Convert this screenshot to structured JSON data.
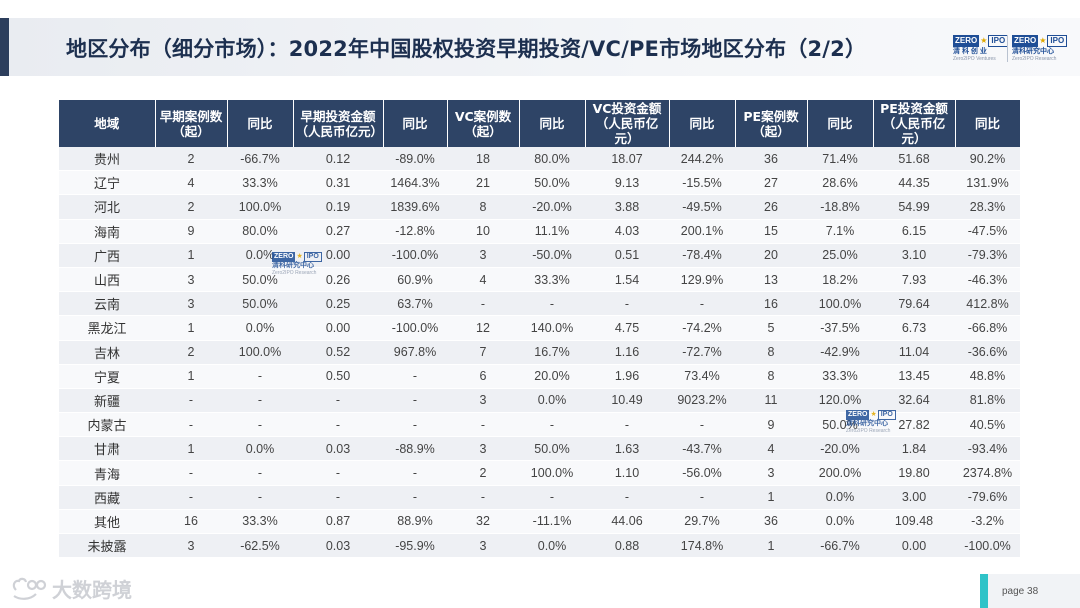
{
  "header": {
    "title": "地区分布（细分市场）：2022年中国股权投资早期投资/VC/PE市场地区分布（2/2）",
    "logo_left": {
      "badge_a": "ZERO",
      "badge_b": "IPO",
      "cn": "清 科 创 业",
      "en": "Zero2IPO Ventures"
    },
    "logo_right": {
      "badge_a": "ZERO",
      "badge_b": "IPO",
      "cn": "清科研究中心",
      "en": "Zero2IPO Research"
    }
  },
  "table": {
    "headers": [
      "地域",
      "早期案例数\n（起）",
      "同比",
      "早期投资金额\n（人民币亿元）",
      "同比",
      "VC案例数\n（起）",
      "同比",
      "VC投资金额\n（人民币亿元）",
      "同比",
      "PE案例数\n（起）",
      "同比",
      "PE投资金额\n（人民币亿元）",
      "同比"
    ],
    "rows": [
      [
        "贵州",
        "2",
        "-66.7%",
        "0.12",
        "-89.0%",
        "18",
        "80.0%",
        "18.07",
        "244.2%",
        "36",
        "71.4%",
        "51.68",
        "90.2%"
      ],
      [
        "辽宁",
        "4",
        "33.3%",
        "0.31",
        "1464.3%",
        "21",
        "50.0%",
        "9.13",
        "-15.5%",
        "27",
        "28.6%",
        "44.35",
        "131.9%"
      ],
      [
        "河北",
        "2",
        "100.0%",
        "0.19",
        "1839.6%",
        "8",
        "-20.0%",
        "3.88",
        "-49.5%",
        "26",
        "-18.8%",
        "54.99",
        "28.3%"
      ],
      [
        "海南",
        "9",
        "80.0%",
        "0.27",
        "-12.8%",
        "10",
        "11.1%",
        "4.03",
        "200.1%",
        "15",
        "7.1%",
        "6.15",
        "-47.5%"
      ],
      [
        "广西",
        "1",
        "0.0%",
        "0.00",
        "-100.0%",
        "3",
        "-50.0%",
        "0.51",
        "-78.4%",
        "20",
        "25.0%",
        "3.10",
        "-79.3%"
      ],
      [
        "山西",
        "3",
        "50.0%",
        "0.26",
        "60.9%",
        "4",
        "33.3%",
        "1.54",
        "129.9%",
        "13",
        "18.2%",
        "7.93",
        "-46.3%"
      ],
      [
        "云南",
        "3",
        "50.0%",
        "0.25",
        "63.7%",
        "-",
        "-",
        "-",
        "-",
        "16",
        "100.0%",
        "79.64",
        "412.8%"
      ],
      [
        "黑龙江",
        "1",
        "0.0%",
        "0.00",
        "-100.0%",
        "12",
        "140.0%",
        "4.75",
        "-74.2%",
        "5",
        "-37.5%",
        "6.73",
        "-66.8%"
      ],
      [
        "吉林",
        "2",
        "100.0%",
        "0.52",
        "967.8%",
        "7",
        "16.7%",
        "1.16",
        "-72.7%",
        "8",
        "-42.9%",
        "11.04",
        "-36.6%"
      ],
      [
        "宁夏",
        "1",
        "-",
        "0.50",
        "-",
        "6",
        "20.0%",
        "1.96",
        "73.4%",
        "8",
        "33.3%",
        "13.45",
        "48.8%"
      ],
      [
        "新疆",
        "-",
        "-",
        "-",
        "-",
        "3",
        "0.0%",
        "10.49",
        "9023.2%",
        "11",
        "120.0%",
        "32.64",
        "81.8%"
      ],
      [
        "内蒙古",
        "-",
        "-",
        "-",
        "-",
        "-",
        "-",
        "-",
        "-",
        "9",
        "50.0%",
        "27.82",
        "40.5%"
      ],
      [
        "甘肃",
        "1",
        "0.0%",
        "0.03",
        "-88.9%",
        "3",
        "50.0%",
        "1.63",
        "-43.7%",
        "4",
        "-20.0%",
        "1.84",
        "-93.4%"
      ],
      [
        "青海",
        "-",
        "-",
        "-",
        "-",
        "2",
        "100.0%",
        "1.10",
        "-56.0%",
        "3",
        "200.0%",
        "19.80",
        "2374.8%"
      ],
      [
        "西藏",
        "-",
        "-",
        "-",
        "-",
        "-",
        "-",
        "-",
        "-",
        "1",
        "0.0%",
        "3.00",
        "-79.6%"
      ],
      [
        "其他",
        "16",
        "33.3%",
        "0.87",
        "88.9%",
        "32",
        "-11.1%",
        "44.06",
        "29.7%",
        "36",
        "0.0%",
        "109.48",
        "-3.2%"
      ],
      [
        "未披露",
        "3",
        "-62.5%",
        "0.03",
        "-95.9%",
        "3",
        "0.0%",
        "0.88",
        "174.8%",
        "1",
        "-66.7%",
        "0.00",
        "-100.0%"
      ]
    ]
  },
  "watermarks": [
    {
      "badge_a": "ZERO",
      "badge_b": "IPO",
      "cn": "清科研究中心",
      "en": "Zero2IPO Research"
    },
    {
      "badge_a": "ZERO",
      "badge_b": "IPO",
      "cn": "清科研究中心",
      "en": "Zero2IPO Research"
    }
  ],
  "footer": {
    "brand": "大数跨境",
    "page": "page  38"
  }
}
